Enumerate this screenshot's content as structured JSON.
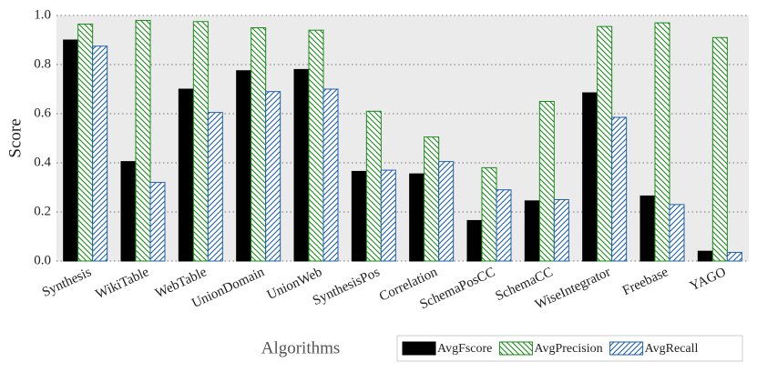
{
  "chart_data": {
    "type": "bar",
    "xlabel": "Algorithms",
    "ylabel": "Score",
    "categories": [
      "Synthesis",
      "WikiTable",
      "WebTable",
      "UnionDomain",
      "UnionWeb",
      "SynthesisPos",
      "Correlation",
      "SchemaPosCC",
      "SchemaCC",
      "WiseIntegrator",
      "Freebase",
      "YAGO"
    ],
    "series": [
      {
        "name": "AvgFscore",
        "color": "#000000",
        "hatch": null,
        "values": [
          0.9,
          0.405,
          0.7,
          0.775,
          0.78,
          0.365,
          0.355,
          0.165,
          0.245,
          0.685,
          0.265,
          0.04
        ]
      },
      {
        "name": "AvgPrecision",
        "color": "#1a8a1a",
        "hatch": "backslash",
        "values": [
          0.965,
          0.98,
          0.975,
          0.95,
          0.94,
          0.61,
          0.505,
          0.38,
          0.65,
          0.955,
          0.97,
          0.91
        ]
      },
      {
        "name": "AvgRecall",
        "color": "#1f5fa8",
        "hatch": "slash",
        "values": [
          0.875,
          0.32,
          0.605,
          0.69,
          0.7,
          0.37,
          0.405,
          0.29,
          0.25,
          0.585,
          0.23,
          0.035
        ]
      }
    ],
    "ylim": [
      0,
      1
    ],
    "yticks": [
      {
        "value": 0,
        "label": "0.0"
      },
      0.2,
      0.4,
      0.6,
      0.8,
      {
        "value": 1,
        "label": "1.0"
      }
    ],
    "grid": true,
    "legend": "bottom-right"
  }
}
